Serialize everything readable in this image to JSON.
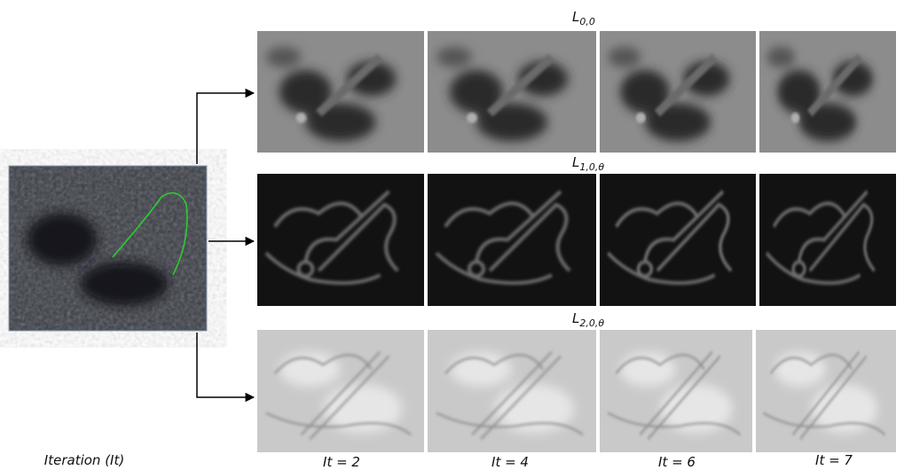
{
  "rows": [
    {
      "symbol": "L",
      "subscript": "0,0"
    },
    {
      "symbol": "L",
      "subscript": "1,0,θ"
    },
    {
      "symbol": "L",
      "subscript": "2,0,θ"
    }
  ],
  "x_axis_label": "Iteration (It)",
  "columns": [
    "It = 2",
    "It = 4",
    "It = 6",
    "It = 7"
  ]
}
